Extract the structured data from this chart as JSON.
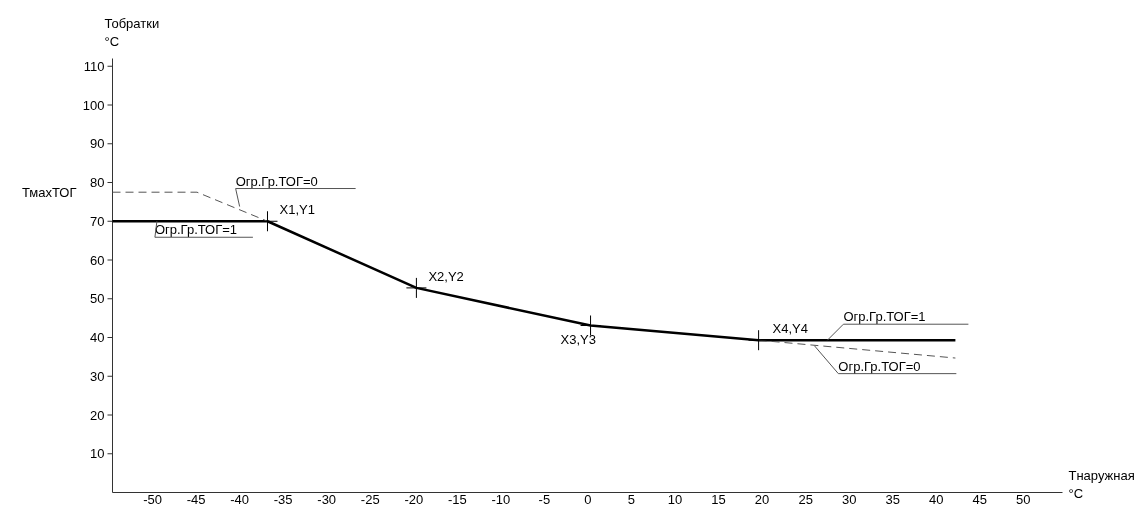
{
  "chart_data": {
    "type": "line",
    "xlabel": "Тнаружная\n°C",
    "ylabel": "Тобратки\n°C",
    "xlim": [
      -54.6,
      54.5
    ],
    "ylim": [
      0,
      112
    ],
    "xticks": [
      -50,
      -45,
      -40,
      -35,
      -30,
      -25,
      -20,
      -15,
      -10,
      -5,
      0,
      5,
      10,
      15,
      20,
      25,
      30,
      35,
      40,
      45,
      50
    ],
    "yticks": [
      10,
      20,
      30,
      40,
      50,
      60,
      70,
      80,
      90,
      100,
      110
    ],
    "grid": false,
    "series": [
      {
        "type": "line",
        "color": "#000000",
        "line_style": "solid",
        "x": [
          -54.6,
          -36.8,
          -19.7,
          0.3,
          19.6,
          42.2
        ],
        "values": [
          70,
          70,
          52.8,
          43.1,
          39.3,
          39.3
        ]
      },
      {
        "type": "line",
        "color": "#555555",
        "line_style": "dashed",
        "x": [
          -54.6,
          -44.9,
          -36.8
        ],
        "values": [
          77.5,
          77.5,
          70
        ]
      },
      {
        "type": "line",
        "color": "#555555",
        "line_style": "dashed",
        "x": [
          19.6,
          42.2
        ],
        "values": [
          39.3,
          34.7
        ]
      },
      {
        "type": "scatter",
        "color": "#000000",
        "marker": "cross",
        "x": [
          -36.8,
          -19.7,
          0.3,
          19.6
        ],
        "values": [
          70,
          52.8,
          43.1,
          39.3
        ]
      }
    ],
    "annotations": [
      {
        "text": "X1,Y1",
        "x": -36.8,
        "y": 70
      },
      {
        "text": "X2,Y2",
        "x": -19.7,
        "y": 52.8
      },
      {
        "text": "X3,Y3",
        "x": 0.3,
        "y": 43.1
      },
      {
        "text": "X4,Y4",
        "x": 19.6,
        "y": 39.3
      },
      {
        "text": "Огр.Гр.ТОГ=0",
        "x": -40,
        "y": 73.8
      },
      {
        "text": "Огр.Гр.ТОГ=1",
        "x": -49.5,
        "y": 70
      },
      {
        "text": "Огр.Гр.ТОГ=1",
        "x": 27.5,
        "y": 39.3
      },
      {
        "text": "Огр.Гр.ТОГ=0",
        "x": 26,
        "y": 37.9
      },
      {
        "text": "ТмахТОГ",
        "x": -54.6,
        "y": 77.5
      }
    ]
  }
}
